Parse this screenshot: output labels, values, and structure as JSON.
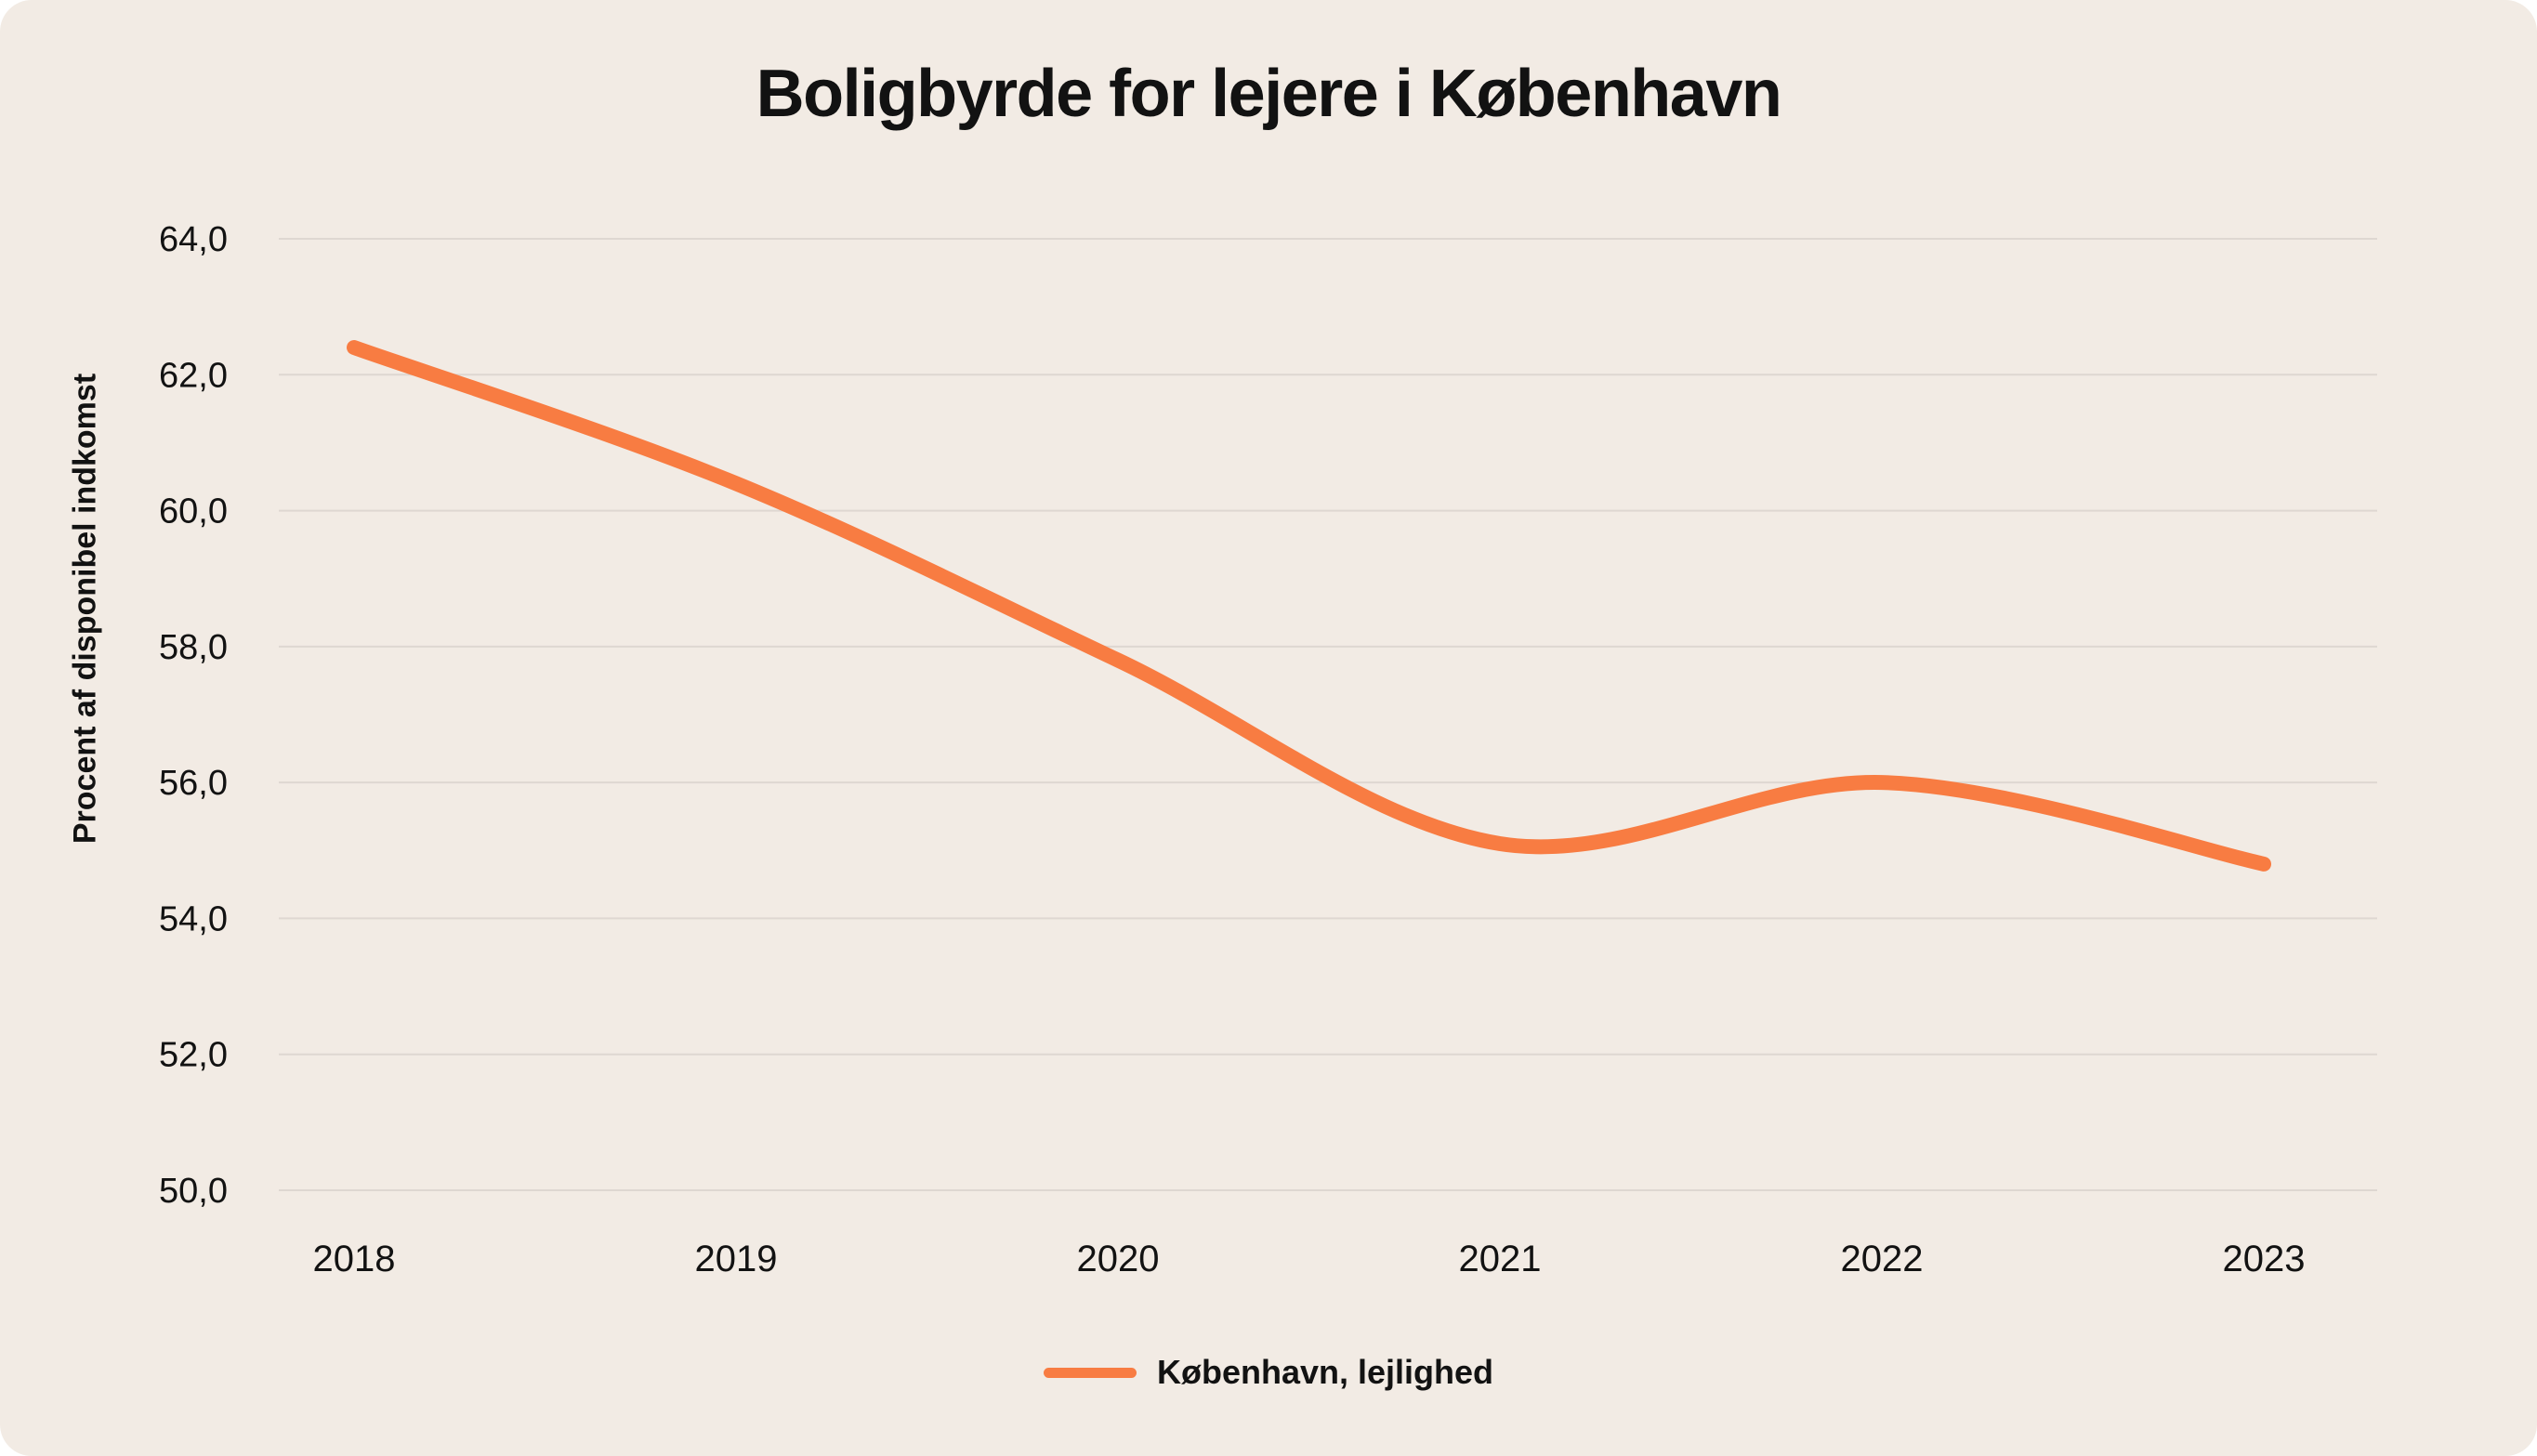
{
  "page": {
    "background": "#ffffff",
    "card_background": "#f2ebe4",
    "text_color": "#121212"
  },
  "chart_data": {
    "type": "line",
    "title": "Boligbyrde for lejere i København",
    "ylabel": "Procent af disponibel indkomst",
    "xlabel": "",
    "categories": [
      "2018",
      "2019",
      "2020",
      "2021",
      "2022",
      "2023"
    ],
    "series": [
      {
        "name": "København, lejlighed",
        "color": "#f87c42",
        "values": [
          62.4,
          60.4,
          57.8,
          55.1,
          56.0,
          54.8
        ]
      }
    ],
    "ylim": [
      50,
      64
    ],
    "y_ticks": [
      64,
      62,
      60,
      58,
      56,
      54,
      52,
      50
    ],
    "y_tick_labels": [
      "64,0",
      "62,0",
      "60,0",
      "58,0",
      "56,0",
      "54,0",
      "52,0",
      "50,0"
    ],
    "grid": "horizontal-only",
    "gridline_color": "#ded7d1",
    "smooth": true,
    "line_width": 16,
    "legend_position": "bottom"
  }
}
